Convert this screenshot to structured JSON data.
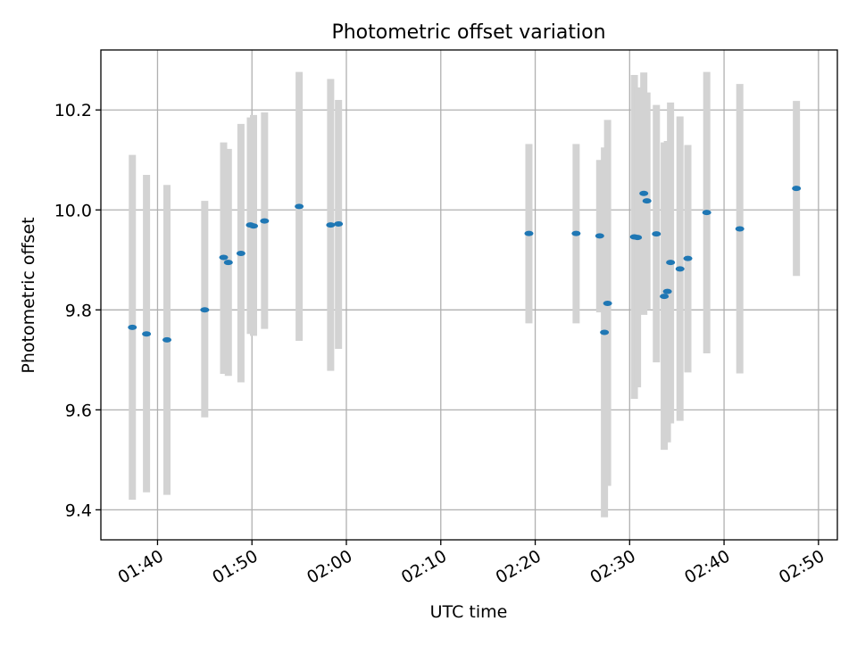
{
  "chart_data": {
    "type": "scatter",
    "title": "Photometric offset variation",
    "xlabel": "UTC time",
    "ylabel": "Photometric offset",
    "grid": true,
    "xlim": [
      "01:34",
      "02:52"
    ],
    "ylim": [
      9.34,
      10.32
    ],
    "x_ticks": [
      "01:40",
      "01:50",
      "02:00",
      "02:10",
      "02:20",
      "02:30",
      "02:40",
      "02:50"
    ],
    "y_ticks": [
      9.4,
      9.6,
      9.8,
      10.0,
      10.2
    ],
    "marker_color": "#1f77b4",
    "errorbar_color": "#d3d3d3",
    "points": [
      {
        "x": "01:37:20",
        "y": 9.765,
        "low": 9.42,
        "high": 10.11
      },
      {
        "x": "01:38:50",
        "y": 9.752,
        "low": 9.435,
        "high": 10.07
      },
      {
        "x": "01:41:00",
        "y": 9.74,
        "low": 9.43,
        "high": 10.05
      },
      {
        "x": "01:45:00",
        "y": 9.8,
        "low": 9.585,
        "high": 10.018
      },
      {
        "x": "01:47:00",
        "y": 9.905,
        "low": 9.672,
        "high": 10.135
      },
      {
        "x": "01:47:30",
        "y": 9.895,
        "low": 9.668,
        "high": 10.122
      },
      {
        "x": "01:48:50",
        "y": 9.913,
        "low": 9.655,
        "high": 10.172
      },
      {
        "x": "01:49:50",
        "y": 9.97,
        "low": 9.752,
        "high": 10.185
      },
      {
        "x": "01:50:10",
        "y": 9.968,
        "low": 9.748,
        "high": 10.19
      },
      {
        "x": "01:51:20",
        "y": 9.978,
        "low": 9.762,
        "high": 10.195
      },
      {
        "x": "01:55:00",
        "y": 10.007,
        "low": 9.738,
        "high": 10.276
      },
      {
        "x": "01:58:20",
        "y": 9.97,
        "low": 9.678,
        "high": 10.262
      },
      {
        "x": "01:59:10",
        "y": 9.972,
        "low": 9.722,
        "high": 10.22
      },
      {
        "x": "02:19:20",
        "y": 9.953,
        "low": 9.773,
        "high": 10.132
      },
      {
        "x": "02:24:20",
        "y": 9.953,
        "low": 9.773,
        "high": 10.132
      },
      {
        "x": "02:26:50",
        "y": 9.948,
        "low": 9.795,
        "high": 10.1
      },
      {
        "x": "02:27:20",
        "y": 9.755,
        "low": 9.385,
        "high": 10.125
      },
      {
        "x": "02:27:40",
        "y": 9.813,
        "low": 9.448,
        "high": 10.18
      },
      {
        "x": "02:30:30",
        "y": 9.946,
        "low": 9.622,
        "high": 10.27
      },
      {
        "x": "02:30:50",
        "y": 9.945,
        "low": 9.645,
        "high": 10.245
      },
      {
        "x": "02:31:30",
        "y": 10.033,
        "low": 9.79,
        "high": 10.275
      },
      {
        "x": "02:31:50",
        "y": 10.018,
        "low": 9.8,
        "high": 10.235
      },
      {
        "x": "02:32:50",
        "y": 9.952,
        "low": 9.695,
        "high": 10.21
      },
      {
        "x": "02:33:40",
        "y": 9.827,
        "low": 9.52,
        "high": 10.135
      },
      {
        "x": "02:34:00",
        "y": 9.837,
        "low": 9.535,
        "high": 10.138
      },
      {
        "x": "02:34:20",
        "y": 9.895,
        "low": 9.573,
        "high": 10.215
      },
      {
        "x": "02:35:20",
        "y": 9.882,
        "low": 9.578,
        "high": 10.187
      },
      {
        "x": "02:36:10",
        "y": 9.903,
        "low": 9.675,
        "high": 10.13
      },
      {
        "x": "02:38:10",
        "y": 9.995,
        "low": 9.713,
        "high": 10.276
      },
      {
        "x": "02:41:40",
        "y": 9.962,
        "low": 9.673,
        "high": 10.252
      },
      {
        "x": "02:47:40",
        "y": 10.043,
        "low": 9.868,
        "high": 10.218
      }
    ]
  }
}
